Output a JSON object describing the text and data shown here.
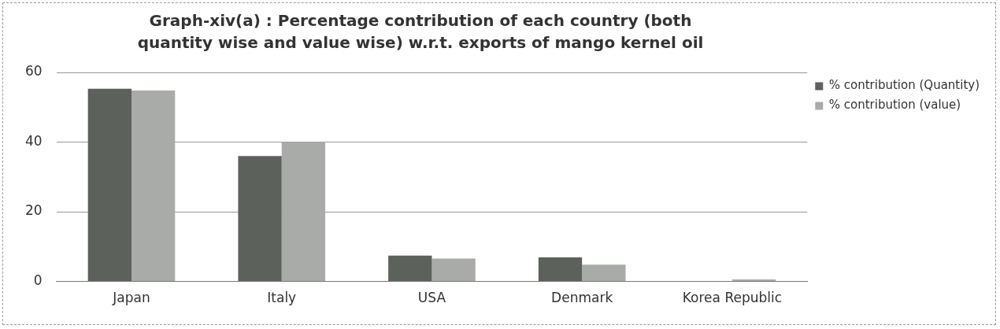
{
  "chart_data": {
    "type": "bar",
    "title": "Graph-xiv(a) : Percentage contribution of each country (both quantity wise and value wise) w.r.t. exports of mango kernel oil",
    "categories": [
      "Japan",
      "Italy",
      "USA",
      "Denmark",
      "Korea Republic"
    ],
    "series": [
      {
        "name": "% contribution (Quantity)",
        "color": "#5c615c",
        "values": [
          55.3,
          36,
          7.4,
          6.9,
          0
        ]
      },
      {
        "name": "% contribution (value)",
        "color": "#a9aba9",
        "values": [
          54.8,
          40,
          6.6,
          4.8,
          0.6
        ]
      }
    ],
    "ylim": [
      0,
      60
    ],
    "yticks": [
      0,
      20,
      40,
      60
    ],
    "grid": "y",
    "legend": "right"
  }
}
